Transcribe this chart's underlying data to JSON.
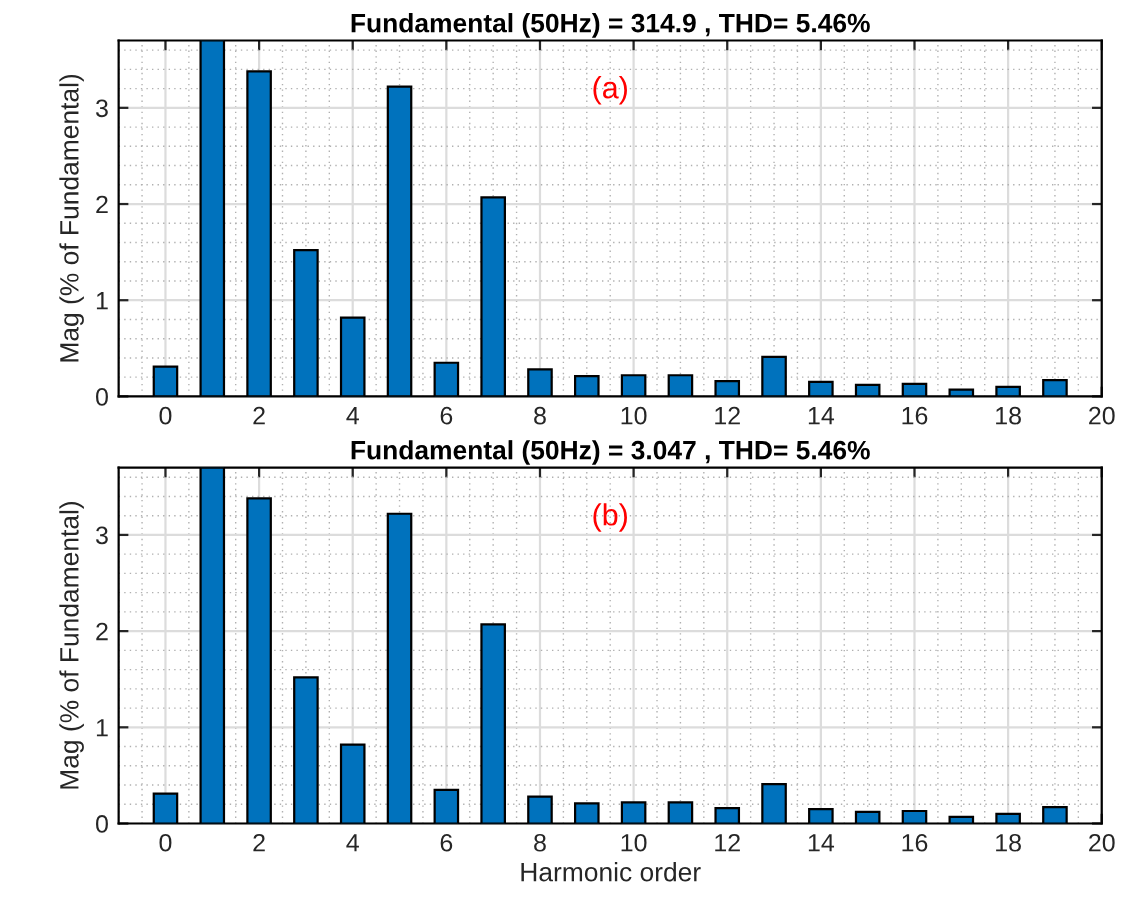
{
  "chart_data": [
    {
      "type": "bar",
      "title": "Fundamental (50Hz) = 314.9 , THD= 5.46%",
      "ylabel": "Mag (% of Fundamental)",
      "annotations": [
        "(a)"
      ],
      "x": [
        0,
        1,
        2,
        3,
        4,
        5,
        6,
        7,
        8,
        9,
        10,
        11,
        12,
        13,
        14,
        15,
        16,
        17,
        18,
        19
      ],
      "series": [
        {
          "color": "#0072bd",
          "values": [
            0.31,
            3.7,
            3.38,
            1.52,
            0.82,
            3.22,
            0.35,
            2.07,
            0.28,
            0.21,
            0.22,
            0.22,
            0.16,
            0.41,
            0.15,
            0.12,
            0.13,
            0.07,
            0.1,
            0.17
          ]
        }
      ],
      "xlim": [
        -1,
        20
      ],
      "xticks": [
        0,
        2,
        4,
        6,
        8,
        10,
        12,
        14,
        16,
        18,
        20
      ],
      "ylim": [
        0,
        3.7
      ],
      "yticks": [
        0,
        1,
        2,
        3
      ],
      "grid": true,
      "legend": false
    },
    {
      "type": "bar",
      "title": "Fundamental (50Hz) = 3.047 , THD= 5.46%",
      "ylabel": "Mag (% of Fundamental)",
      "xlabel": "Harmonic order",
      "annotations": [
        "(b)"
      ],
      "x": [
        0,
        1,
        2,
        3,
        4,
        5,
        6,
        7,
        8,
        9,
        10,
        11,
        12,
        13,
        14,
        15,
        16,
        17,
        18,
        19
      ],
      "series": [
        {
          "color": "#0072bd",
          "values": [
            0.31,
            3.7,
            3.38,
            1.52,
            0.82,
            3.22,
            0.35,
            2.07,
            0.28,
            0.21,
            0.22,
            0.22,
            0.16,
            0.41,
            0.15,
            0.12,
            0.13,
            0.07,
            0.1,
            0.17
          ]
        }
      ],
      "xlim": [
        -1,
        20
      ],
      "xticks": [
        0,
        2,
        4,
        6,
        8,
        10,
        12,
        14,
        16,
        18,
        20
      ],
      "ylim": [
        0,
        3.7
      ],
      "yticks": [
        0,
        1,
        2,
        3
      ],
      "grid": true,
      "legend": false
    }
  ]
}
